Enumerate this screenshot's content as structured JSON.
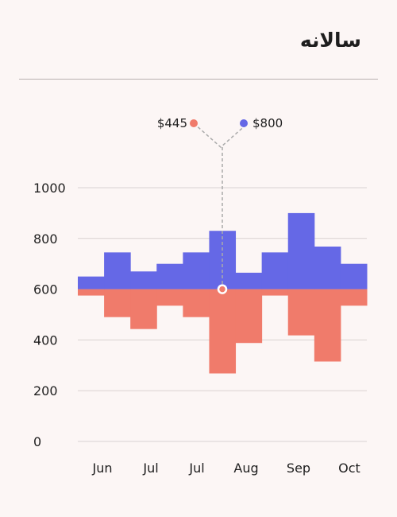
{
  "header": {
    "title": "سالانه"
  },
  "colors": {
    "upper": "#6568e6",
    "lower": "#f07b6b",
    "grid": "#d9d2d2",
    "leader": "#aaaaaa"
  },
  "legend": {
    "left_label": "$445",
    "right_label": "$800"
  },
  "chart_data": {
    "type": "bar",
    "baseline": 600,
    "ylim": [
      0,
      1000
    ],
    "yticks": [
      0,
      200,
      400,
      600,
      800,
      1000
    ],
    "xtick_labels": [
      "Jun",
      "Jul",
      "Jul",
      "Aug",
      "Sep",
      "Oct"
    ],
    "series": [
      {
        "color": "#6568e6",
        "values": [
          650,
          745,
          670,
          700,
          745,
          830,
          665,
          745,
          900,
          768,
          700
        ]
      },
      {
        "color": "#f07b6b",
        "values": [
          575,
          490,
          443,
          535,
          490,
          268,
          388,
          575,
          418,
          315,
          535
        ]
      }
    ],
    "marker": {
      "bar_index": 5,
      "value": 600
    }
  }
}
